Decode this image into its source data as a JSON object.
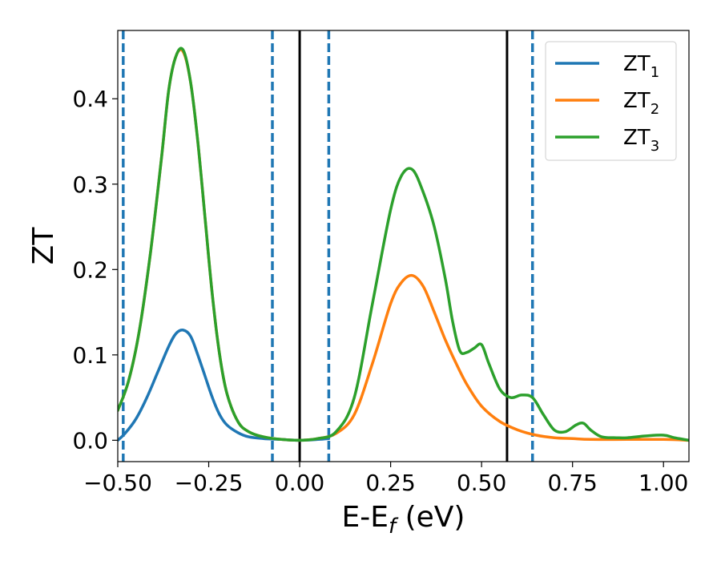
{
  "chart_data": {
    "type": "line",
    "xlabel": "E-E",
    "xlabel_sub": "f",
    "xlabel_unit": " (eV)",
    "ylabel": "ZT",
    "xlim": [
      -0.5,
      1.07
    ],
    "ylim": [
      -0.025,
      0.48
    ],
    "grid": false,
    "legend_position": "top-right",
    "x_ticks": [
      -0.5,
      -0.25,
      0.0,
      0.25,
      0.5,
      0.75,
      1.0
    ],
    "x_tick_labels": [
      "−0.50",
      "−0.25",
      "0.00",
      "0.25",
      "0.50",
      "0.75",
      "1.00"
    ],
    "y_ticks": [
      0.0,
      0.1,
      0.2,
      0.3,
      0.4
    ],
    "y_tick_labels": [
      "0.0",
      "0.1",
      "0.2",
      "0.3",
      "0.4"
    ],
    "vertical_lines": [
      {
        "x": -0.485,
        "style": "dashed",
        "color": "#1f77b4"
      },
      {
        "x": -0.075,
        "style": "dashed",
        "color": "#1f77b4"
      },
      {
        "x": 0.0,
        "style": "solid",
        "color": "#000000"
      },
      {
        "x": 0.08,
        "style": "dashed",
        "color": "#1f77b4"
      },
      {
        "x": 0.57,
        "style": "solid",
        "color": "#000000"
      },
      {
        "x": 0.64,
        "style": "dashed",
        "color": "#1f77b4"
      }
    ],
    "series": [
      {
        "name": "ZT",
        "name_sub": "1",
        "color": "#1f77b4",
        "x": [
          -0.5,
          -0.48,
          -0.45,
          -0.42,
          -0.39,
          -0.36,
          -0.34,
          -0.32,
          -0.3,
          -0.28,
          -0.26,
          -0.24,
          -0.22,
          -0.2,
          -0.17,
          -0.14,
          -0.1,
          -0.05,
          0.0,
          0.05,
          0.08
        ],
        "y": [
          0.0,
          0.008,
          0.025,
          0.05,
          0.08,
          0.11,
          0.125,
          0.129,
          0.122,
          0.1,
          0.075,
          0.05,
          0.03,
          0.018,
          0.009,
          0.004,
          0.002,
          0.001,
          0.0,
          0.001,
          0.002
        ]
      },
      {
        "name": "ZT",
        "name_sub": "2",
        "color": "#ff7f0e",
        "x": [
          -0.5,
          -0.47,
          -0.44,
          -0.41,
          -0.38,
          -0.36,
          -0.34,
          -0.32,
          -0.3,
          -0.28,
          -0.26,
          -0.24,
          -0.22,
          -0.2,
          -0.17,
          -0.14,
          -0.1,
          -0.05,
          0.0,
          0.05,
          0.1,
          0.15,
          0.2,
          0.25,
          0.28,
          0.31,
          0.34,
          0.37,
          0.4,
          0.43,
          0.46,
          0.5,
          0.55,
          0.6,
          0.65,
          0.7,
          0.75,
          0.8,
          0.9,
          1.0,
          1.07
        ],
        "y": [
          0.035,
          0.07,
          0.13,
          0.22,
          0.33,
          0.41,
          0.45,
          0.455,
          0.42,
          0.35,
          0.26,
          0.17,
          0.1,
          0.055,
          0.022,
          0.01,
          0.004,
          0.001,
          0.0,
          0.002,
          0.008,
          0.03,
          0.09,
          0.16,
          0.185,
          0.193,
          0.18,
          0.15,
          0.118,
          0.09,
          0.065,
          0.04,
          0.022,
          0.012,
          0.006,
          0.003,
          0.002,
          0.001,
          0.001,
          0.001,
          0.0
        ]
      },
      {
        "name": "ZT",
        "name_sub": "3",
        "color": "#2ca02c",
        "x": [
          -0.5,
          -0.47,
          -0.44,
          -0.41,
          -0.38,
          -0.36,
          -0.34,
          -0.32,
          -0.3,
          -0.28,
          -0.26,
          -0.24,
          -0.22,
          -0.2,
          -0.17,
          -0.14,
          -0.1,
          -0.05,
          0.0,
          0.05,
          0.1,
          0.15,
          0.2,
          0.25,
          0.28,
          0.31,
          0.34,
          0.37,
          0.4,
          0.42,
          0.44,
          0.46,
          0.48,
          0.5,
          0.52,
          0.55,
          0.58,
          0.61,
          0.64,
          0.67,
          0.7,
          0.73,
          0.76,
          0.78,
          0.8,
          0.83,
          0.87,
          0.9,
          0.95,
          1.0,
          1.03,
          1.07
        ],
        "y": [
          0.035,
          0.07,
          0.13,
          0.22,
          0.33,
          0.41,
          0.45,
          0.457,
          0.42,
          0.35,
          0.26,
          0.17,
          0.1,
          0.055,
          0.022,
          0.01,
          0.004,
          0.001,
          0.0,
          0.002,
          0.01,
          0.05,
          0.16,
          0.27,
          0.31,
          0.317,
          0.29,
          0.25,
          0.19,
          0.14,
          0.105,
          0.103,
          0.108,
          0.112,
          0.09,
          0.06,
          0.05,
          0.053,
          0.05,
          0.03,
          0.012,
          0.01,
          0.018,
          0.02,
          0.012,
          0.004,
          0.003,
          0.003,
          0.005,
          0.006,
          0.003,
          0.0
        ]
      }
    ]
  }
}
